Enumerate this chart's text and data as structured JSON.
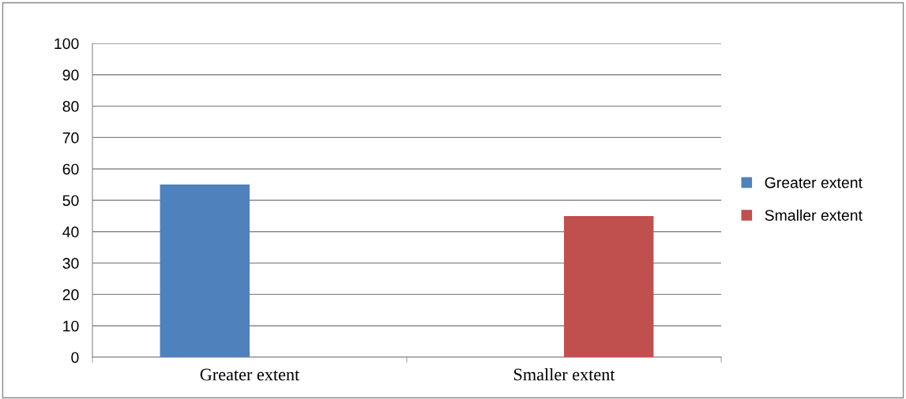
{
  "chart_data": {
    "type": "bar",
    "categories": [
      "Greater extent",
      "Smaller extent"
    ],
    "series": [
      {
        "name": "Greater extent",
        "color": "#4f81bd",
        "values": [
          55,
          null
        ]
      },
      {
        "name": "Smaller extent",
        "color": "#c0504d",
        "values": [
          null,
          45
        ]
      }
    ],
    "ylim": [
      0,
      100
    ],
    "yticks": [
      0,
      10,
      20,
      30,
      40,
      50,
      60,
      70,
      80,
      90,
      100
    ],
    "grid": "y",
    "legend": "right"
  }
}
